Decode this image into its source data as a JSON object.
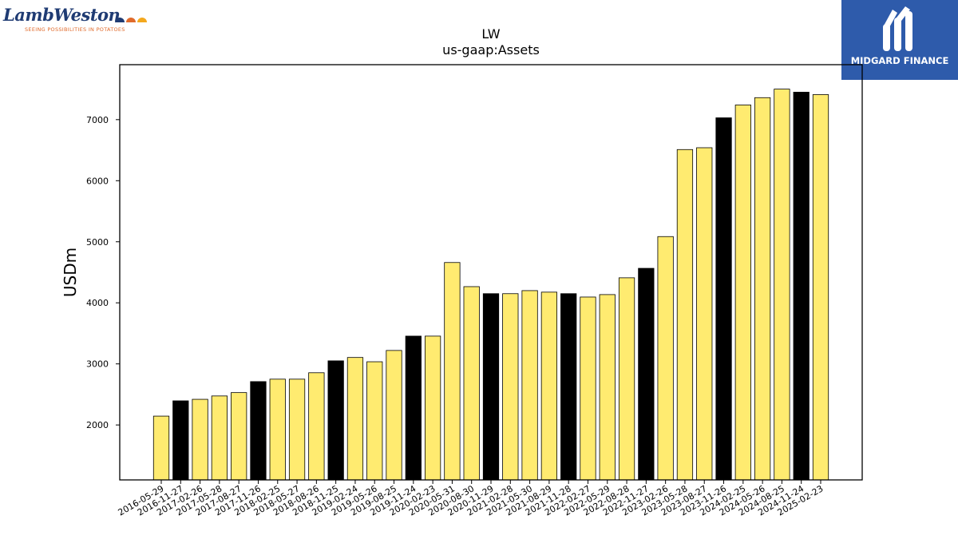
{
  "logos": {
    "left": {
      "brand": "LambWeston",
      "tagline": "SEEING POSSIBILITIES IN POTATOES",
      "icon": "potato-dots-icon",
      "colors": [
        "#1f3b73",
        "#e06a2b",
        "#f4a81d"
      ]
    },
    "right": {
      "name": "MIDGARD FINANCE",
      "icon": "midgard-m-icon",
      "background": "#2e5bab"
    }
  },
  "chart_data": {
    "type": "bar",
    "title": "LW",
    "subtitle": "us-gaap:Assets",
    "xlabel": "",
    "ylabel": "USDm",
    "ylim": [
      1100,
      7900
    ],
    "yticks": [
      2000,
      3000,
      4000,
      5000,
      6000,
      7000
    ],
    "grid": false,
    "colors": {
      "fill_light": "#ffeb70",
      "fill_dark": "#000000",
      "edge": "#000000"
    },
    "categories": [
      "2016-05-29",
      "2016-11-27",
      "2017-02-26",
      "2017-05-28",
      "2017-08-27",
      "2017-11-26",
      "2018-02-25",
      "2018-05-27",
      "2018-08-26",
      "2018-11-25",
      "2019-02-24",
      "2019-05-26",
      "2019-08-25",
      "2019-11-24",
      "2020-02-23",
      "2020-05-31",
      "2020-08-30",
      "2020-11-29",
      "2021-02-28",
      "2021-05-30",
      "2021-08-29",
      "2021-11-28",
      "2022-02-27",
      "2022-05-29",
      "2022-08-28",
      "2022-11-27",
      "2023-02-26",
      "2023-05-28",
      "2023-08-27",
      "2023-11-26",
      "2024-02-25",
      "2024-05-26",
      "2024-08-25",
      "2024-11-24",
      "2025-02-23"
    ],
    "values": [
      2145,
      2395,
      2420,
      2475,
      2530,
      2710,
      2750,
      2750,
      2855,
      3050,
      3105,
      3035,
      3220,
      3455,
      3455,
      4660,
      4265,
      4150,
      4150,
      4200,
      4175,
      4150,
      4095,
      4135,
      4410,
      4565,
      5085,
      6510,
      6540,
      7030,
      7240,
      7360,
      7500,
      7450,
      7410
    ],
    "highlight": [
      false,
      true,
      false,
      false,
      false,
      true,
      false,
      false,
      false,
      true,
      false,
      false,
      false,
      true,
      false,
      false,
      false,
      true,
      false,
      false,
      false,
      true,
      false,
      false,
      false,
      true,
      false,
      false,
      false,
      true,
      false,
      false,
      false,
      true,
      false
    ]
  }
}
